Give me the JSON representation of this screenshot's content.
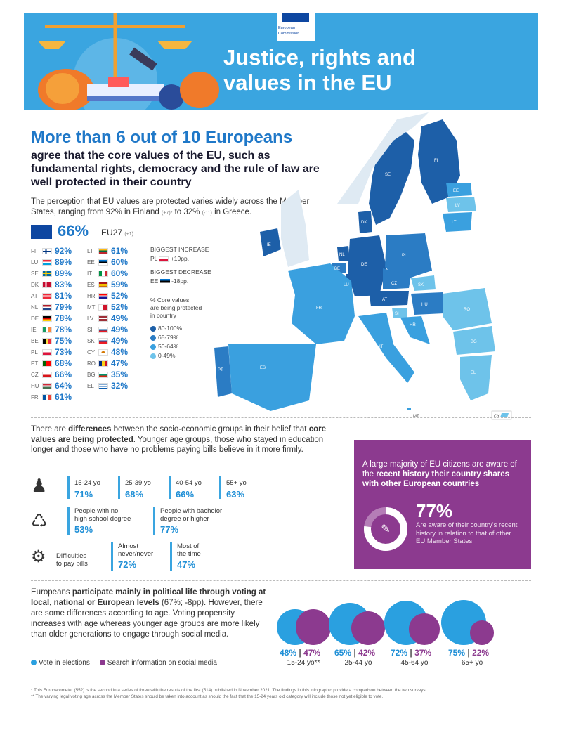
{
  "header": {
    "title_line1": "Justice, rights and",
    "title_line2": "values in the EU",
    "logo_line1": "European",
    "logo_line2": "Commission"
  },
  "intro": {
    "headline": "More than 6 out of 10 Europeans",
    "subhead": "agree that the core values of the EU, such as fundamental rights, democracy and the rule of law are well protected in their country",
    "text_part1": "The perception that EU values are protected varies widely across the Member States, ranging from 92% in Finland ",
    "fi_change": "(+7)*",
    "text_part2": " to 32% ",
    "el_change": "(-11)",
    "text_part3": " in Greece.",
    "eu_pct": "66%",
    "eu_label": "EU27",
    "eu_change": "(+1)"
  },
  "countries_left": [
    {
      "code": "FI",
      "value": "92%"
    },
    {
      "code": "LU",
      "value": "89%"
    },
    {
      "code": "SE",
      "value": "89%"
    },
    {
      "code": "DK",
      "value": "83%"
    },
    {
      "code": "AT",
      "value": "81%"
    },
    {
      "code": "NL",
      "value": "79%"
    },
    {
      "code": "DE",
      "value": "78%"
    },
    {
      "code": "IE",
      "value": "78%"
    },
    {
      "code": "BE",
      "value": "75%"
    },
    {
      "code": "PL",
      "value": "73%"
    },
    {
      "code": "PT",
      "value": "68%"
    },
    {
      "code": "CZ",
      "value": "66%"
    },
    {
      "code": "HU",
      "value": "64%"
    },
    {
      "code": "FR",
      "value": "61%"
    }
  ],
  "countries_right": [
    {
      "code": "LT",
      "value": "61%"
    },
    {
      "code": "EE",
      "value": "60%"
    },
    {
      "code": "IT",
      "value": "60%"
    },
    {
      "code": "ES",
      "value": "59%"
    },
    {
      "code": "HR",
      "value": "52%"
    },
    {
      "code": "MT",
      "value": "52%"
    },
    {
      "code": "LV",
      "value": "49%"
    },
    {
      "code": "SI",
      "value": "49%"
    },
    {
      "code": "SK",
      "value": "49%"
    },
    {
      "code": "CY",
      "value": "48%"
    },
    {
      "code": "RO",
      "value": "47%"
    },
    {
      "code": "BG",
      "value": "35%"
    },
    {
      "code": "EL",
      "value": "32%"
    }
  ],
  "legend": {
    "biggest_increase": "BIGGEST INCREASE",
    "increase_code": "PL",
    "increase_value": "+19pp.",
    "biggest_decrease": "BIGGEST DECREASE",
    "decrease_code": "EE",
    "decrease_value": "-18pp.",
    "title_line1": "% Core values",
    "title_line2": "are being protected",
    "title_line3": "in country",
    "ranges": [
      {
        "label": "80-100%",
        "color": "#1d5fa8"
      },
      {
        "label": "65-79%",
        "color": "#2b7cc4"
      },
      {
        "label": "50-64%",
        "color": "#3aa0df"
      },
      {
        "label": "0-49%",
        "color": "#6ec3ea"
      }
    ]
  },
  "map_labels": {
    "FI": "FI",
    "SE": "SE",
    "EE": "EE",
    "LV": "LV",
    "LT": "LT",
    "DK": "DK",
    "IE": "IE",
    "NL": "NL",
    "BE": "BE",
    "LU": "LU",
    "DE": "DE",
    "PL": "PL",
    "CZ": "CZ",
    "SK": "SK",
    "AT": "AT",
    "HU": "HU",
    "SI": "SI",
    "HR": "HR",
    "RO": "RO",
    "BG": "BG",
    "FR": "FR",
    "IT": "IT",
    "ES": "ES",
    "PT": "PT",
    "EL": "EL",
    "MT": "MT",
    "CY": "CY"
  },
  "socio": {
    "text_part1": "There are ",
    "bold1": "differences",
    "text_part2": " between the socio-economic groups in their belief that ",
    "bold2": "core values are being protected",
    "text_part3": ". Younger age groups, those who stayed in education longer and those who have no problems paying bills believe in it more firmly.",
    "ages": [
      {
        "label": "15-24 yo",
        "value": "71%"
      },
      {
        "label": "25-39 yo",
        "value": "68%"
      },
      {
        "label": "40-54 yo",
        "value": "66%"
      },
      {
        "label": "55+ yo",
        "value": "63%"
      }
    ],
    "edu": [
      {
        "label_line1": "People with no",
        "label_line2": "high school degree",
        "value": "53%"
      },
      {
        "label_line1": "People with bachelor",
        "label_line2": "degree or higher",
        "value": "77%"
      }
    ],
    "bills_label_line1": "Difficulties",
    "bills_label_line2": "to pay bills",
    "bills": [
      {
        "label_line1": "Almost",
        "label_line2": "never/never",
        "value": "72%"
      },
      {
        "label_line1": "Most of",
        "label_line2": "the time",
        "value": "47%"
      }
    ]
  },
  "purple": {
    "text_part1": "A large majority of EU citizens are aware of the ",
    "bold": "recent history their country shares with other European countries",
    "pct": "77%",
    "pct_value": 77,
    "pct_text": "Are aware of their country's recent history in relation to that of other EU Member States"
  },
  "voting": {
    "text_part1": "Europeans ",
    "bold": "participate mainly in political life through voting at local, national or European levels",
    "text_part2": " (67%; -8pp). However, there are some differences according to age. Voting propensity increases with age whereas younger age groups are more likely than older generations to engage through social media.",
    "legend_vote": "Vote in elections",
    "legend_social": "Search information on social media",
    "vote_color": "#2aa0e0",
    "social_color": "#8c3a8f",
    "groups": [
      {
        "age": "15-24 yo**",
        "vote": "48%",
        "social": "47%",
        "vote_n": 48,
        "social_n": 47
      },
      {
        "age": "25-44 yo",
        "vote": "65%",
        "social": "42%",
        "vote_n": 65,
        "social_n": 42
      },
      {
        "age": "45-64 yo",
        "vote": "72%",
        "social": "37%",
        "vote_n": 72,
        "social_n": 37
      },
      {
        "age": "65+ yo",
        "vote": "75%",
        "social": "22%",
        "vote_n": 75,
        "social_n": 22
      }
    ]
  },
  "footnotes": {
    "line1": "* This Eurobarometer (552) is the second in a series of three with the results of the first (514) published in November 2021. The findings in this infographic provide a comparison between the two surveys.",
    "line2": "** The varying legal voting age across the Member States should be taken into account as should the fact that the 15-24 years old category will include those not yet eligible to vote."
  }
}
